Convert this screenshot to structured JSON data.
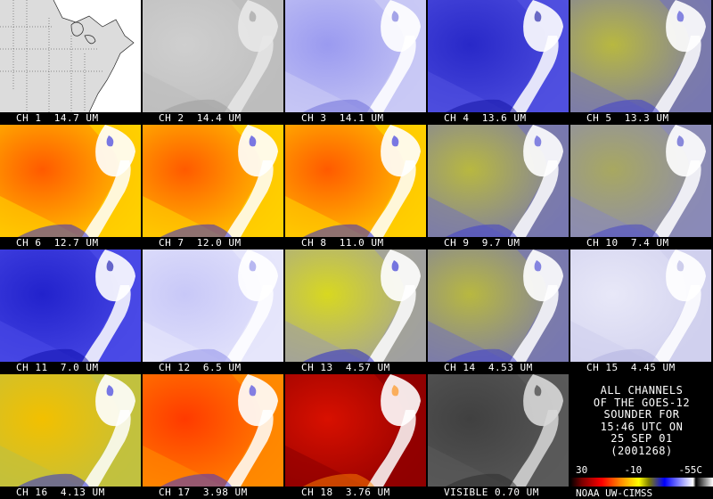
{
  "panels": [
    {
      "label": "CH 1  14.7 UM",
      "kind": "map"
    },
    {
      "label": "CH 2  14.4 UM",
      "kind": "gray"
    },
    {
      "label": "CH 3  14.1 UM",
      "kind": "lavender"
    },
    {
      "label": "CH 4  13.6 UM",
      "kind": "blue"
    },
    {
      "label": "CH 5  13.3 UM",
      "kind": "olive"
    },
    {
      "label": "CH 6  12.7 UM",
      "kind": "hot"
    },
    {
      "label": "CH 7  12.0 UM",
      "kind": "hot"
    },
    {
      "label": "CH 8  11.0 UM",
      "kind": "hot"
    },
    {
      "label": "CH 9  9.7 UM",
      "kind": "olive"
    },
    {
      "label": "CH 10  7.4 UM",
      "kind": "olive2"
    },
    {
      "label": "CH 11  7.0 UM",
      "kind": "deepblue"
    },
    {
      "label": "CH 12  6.5 UM",
      "kind": "lavender2"
    },
    {
      "label": "CH 13  4.57 UM",
      "kind": "yellow"
    },
    {
      "label": "CH 14  4.53 UM",
      "kind": "olive"
    },
    {
      "label": "CH 15  4.45 UM",
      "kind": "pale"
    },
    {
      "label": "CH 16  4.13 UM",
      "kind": "yellow2"
    },
    {
      "label": "CH 17  3.98 UM",
      "kind": "red"
    },
    {
      "label": "CH 18  3.76 UM",
      "kind": "darkred"
    },
    {
      "label": "VISIBLE 0.70 UM",
      "kind": "visible"
    }
  ],
  "info": {
    "lines": [
      "ALL CHANNELS",
      "OF THE GOES-12",
      "SOUNDER FOR",
      "15:46 UTC ON",
      "25 SEP 01",
      "(2001268)"
    ],
    "scale": [
      "30",
      "-10",
      "-55C"
    ],
    "credit": "NOAA UW-CIMSS"
  },
  "colors": {
    "background": "#000000",
    "cloud": "#ffffff",
    "hot": "#ff6a00",
    "cold": "#0000ff"
  }
}
